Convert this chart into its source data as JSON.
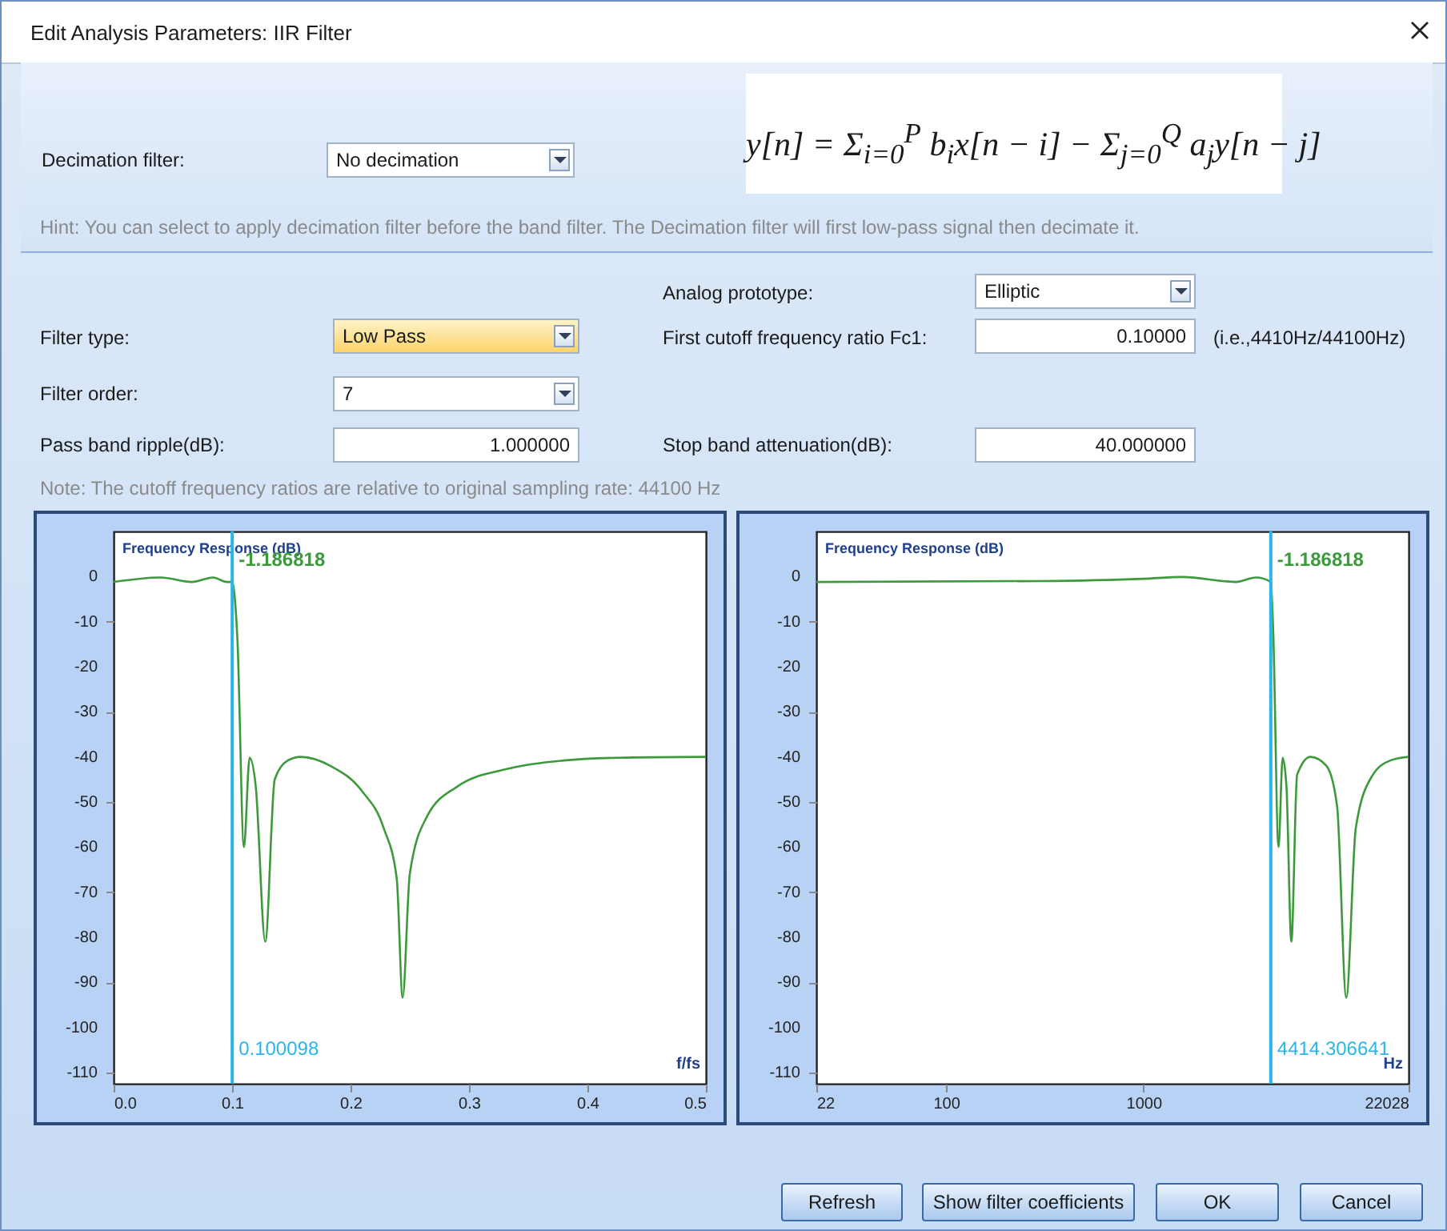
{
  "chart_data": [
    {
      "type": "other",
      "title": "Edit Analysis Parameters: IIR Filter",
      "annotations": [
        "Decimation filter:",
        "No decimation",
        "Hint: You can select to apply decimation filter before the band filter. The Decimation filter will first low-pass signal then decimate it.",
        "Analog prototype:",
        "Elliptic",
        "Filter type:",
        "Low Pass",
        "First cutoff frequency ratio Fc1:",
        "0.10000",
        "(i.e.,4410Hz/44100Hz)",
        "Filter order:",
        "7",
        "Pass band ripple(dB):",
        "1.000000",
        "Stop band attenuation(dB):",
        "40.000000",
        "Note: The cutoff frequency ratios are relative to original sampling rate: 44100 Hz",
        "Refresh",
        "Show filter coefficients",
        "OK",
        "Cancel",
        "y[n] = Σ$_{i=0}$$^{P}$ b$_{i}$x[n − i] − Σ$_{j=0}$$^{Q}$ a$_{j}$y[n − j]"
      ]
    },
    {
      "type": "line",
      "ylabel": "Frequency Response (dB)",
      "xlabel": "f/fs",
      "xlim": [
        0,
        0.5
      ],
      "ylim": [
        -112.5,
        10
      ],
      "xticks": [
        {
          "value": 0,
          "label": "0.0"
        },
        0.1,
        0.2,
        0.3,
        0.4,
        0.5
      ],
      "yticks": [
        0,
        -10,
        -20,
        -30,
        -40,
        -50,
        -60,
        -70,
        -80,
        -90,
        -100,
        -110
      ],
      "x": [
        0,
        0.0395,
        0.066,
        0.084,
        0.0955,
        0.1,
        0.1045,
        0.11,
        0.1148,
        0.12,
        0.128,
        0.136,
        0.147,
        0.158,
        0.183,
        0.21,
        0.228,
        0.239,
        0.244,
        0.25,
        0.264,
        0.29,
        0.335,
        0.38,
        0.425,
        0.5
      ],
      "series": [
        {
          "color": "#3c9a3c",
          "values": [
            -1.2,
            -0.2,
            -1.2,
            -0.2,
            -1.2,
            -1.2,
            -14,
            -60,
            -40.2,
            -46.6,
            -81,
            -45,
            -40.8,
            -40,
            -42,
            -47.7,
            -55.8,
            -67,
            -93.4,
            -66,
            -53.5,
            -46.6,
            -42.5,
            -40.8,
            -40.2,
            -40
          ]
        }
      ],
      "ref_lines": [
        {
          "axis": "x",
          "value": 0.100098,
          "label": "0.100098",
          "color": "#29b6e8"
        }
      ],
      "annotations": [
        {
          "text": "-1.186818",
          "x": 0.100098,
          "y": -1.186818
        }
      ]
    },
    {
      "type": "line",
      "ylabel": "Frequency Response (dB)",
      "xlabel": "Hz",
      "log": "x",
      "xlim": [
        22,
        22028
      ],
      "ylim": [
        -112.5,
        10
      ],
      "xticks": [
        22,
        100,
        1000,
        22028
      ],
      "yticks": [
        0,
        -10,
        -20,
        -30,
        -40,
        -50,
        -60,
        -70,
        -80,
        -90,
        -100,
        -110
      ],
      "x": [
        22,
        300,
        1000,
        1575,
        2940,
        3715,
        4414,
        4540,
        4830,
        5070,
        5300,
        5610,
        6000,
        7010,
        8450,
        9570,
        10650,
        11900,
        14360,
        17800,
        22028
      ],
      "series": [
        {
          "color": "#3c9a3c",
          "values": [
            -1.2,
            -1.0,
            -0.5,
            -0.1,
            -1.2,
            -0.2,
            -1.2,
            -12,
            -60,
            -40.2,
            -46.6,
            -81,
            -44,
            -40,
            -42,
            -51,
            -93.4,
            -55.8,
            -44.3,
            -40.8,
            -40
          ]
        }
      ],
      "ref_lines": [
        {
          "axis": "x",
          "value": 4414.306641,
          "label": "4414.306641",
          "color": "#29b6e8"
        }
      ],
      "annotations": [
        {
          "text": "-1.186818",
          "x": 4414.306641,
          "y": -1.186818
        }
      ]
    }
  ]
}
